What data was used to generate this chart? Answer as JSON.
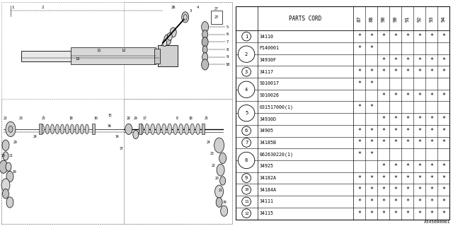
{
  "watermark": "A345000061",
  "table_header": "PARTS CORD",
  "columns": [
    "87",
    "88",
    "90",
    "90",
    "91",
    "92",
    "93",
    "94"
  ],
  "rows": [
    {
      "num": "1",
      "code": "34110",
      "marks": [
        1,
        1,
        1,
        1,
        1,
        1,
        1,
        1
      ],
      "span": 1
    },
    {
      "num": "2",
      "code": "P140001",
      "marks": [
        1,
        1,
        0,
        0,
        0,
        0,
        0,
        0
      ],
      "span": 2
    },
    {
      "num": "2",
      "code": "34930F",
      "marks": [
        0,
        0,
        1,
        1,
        1,
        1,
        1,
        1
      ],
      "span": 0
    },
    {
      "num": "3",
      "code": "34117",
      "marks": [
        1,
        1,
        1,
        1,
        1,
        1,
        1,
        1
      ],
      "span": 1
    },
    {
      "num": "4",
      "code": "S010017",
      "marks": [
        1,
        1,
        0,
        0,
        0,
        0,
        0,
        0
      ],
      "span": 2
    },
    {
      "num": "4",
      "code": "S010026",
      "marks": [
        0,
        0,
        1,
        1,
        1,
        1,
        1,
        1
      ],
      "span": 0
    },
    {
      "num": "5",
      "code": "031517000(1)",
      "marks": [
        1,
        1,
        0,
        0,
        0,
        0,
        0,
        0
      ],
      "span": 2
    },
    {
      "num": "5",
      "code": "34930D",
      "marks": [
        0,
        0,
        1,
        1,
        1,
        1,
        1,
        1
      ],
      "span": 0
    },
    {
      "num": "6",
      "code": "34905",
      "marks": [
        1,
        1,
        1,
        1,
        1,
        1,
        1,
        1
      ],
      "span": 1
    },
    {
      "num": "7",
      "code": "34185B",
      "marks": [
        1,
        1,
        1,
        1,
        1,
        1,
        1,
        1
      ],
      "span": 1
    },
    {
      "num": "8",
      "code": "062630220(1)",
      "marks": [
        1,
        1,
        0,
        0,
        0,
        0,
        0,
        0
      ],
      "span": 2
    },
    {
      "num": "8",
      "code": "34925",
      "marks": [
        0,
        0,
        1,
        1,
        1,
        1,
        1,
        1
      ],
      "span": 0
    },
    {
      "num": "9",
      "code": "34182A",
      "marks": [
        1,
        1,
        1,
        1,
        1,
        1,
        1,
        1
      ],
      "span": 1
    },
    {
      "num": "10",
      "code": "34184A",
      "marks": [
        1,
        1,
        1,
        1,
        1,
        1,
        1,
        1
      ],
      "span": 1
    },
    {
      "num": "11",
      "code": "34111",
      "marks": [
        1,
        1,
        1,
        1,
        1,
        1,
        1,
        1
      ],
      "span": 1
    },
    {
      "num": "12",
      "code": "34115",
      "marks": [
        1,
        1,
        1,
        1,
        1,
        1,
        1,
        1
      ],
      "span": 1
    }
  ],
  "bg_color": "#ffffff",
  "line_color": "#000000",
  "text_color": "#000000"
}
